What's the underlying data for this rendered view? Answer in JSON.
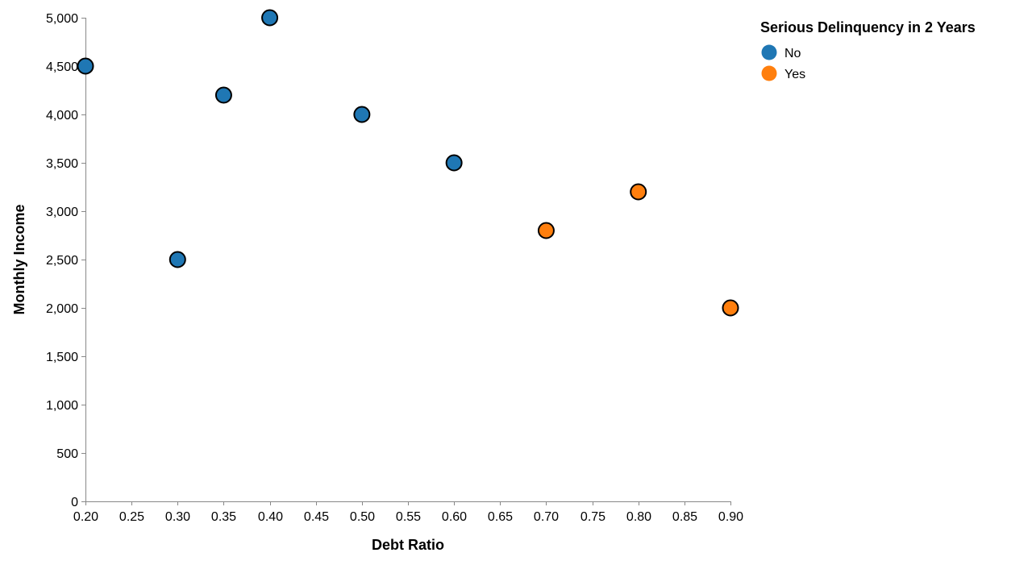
{
  "chart_data": {
    "type": "scatter",
    "xlabel": "Debt Ratio",
    "ylabel": "Monthly Income",
    "xlim": [
      0.2,
      0.9
    ],
    "ylim": [
      0,
      5000
    ],
    "x_ticks": [
      0.2,
      0.25,
      0.3,
      0.35,
      0.4,
      0.45,
      0.5,
      0.55,
      0.6,
      0.65,
      0.7,
      0.75,
      0.8,
      0.85,
      0.9
    ],
    "y_ticks": [
      0,
      500,
      1000,
      1500,
      2000,
      2500,
      3000,
      3500,
      4000,
      4500,
      5000
    ],
    "grid": false,
    "legend": {
      "title": "Serious Delinquency in 2 Years",
      "placement": "top-right",
      "entries": [
        {
          "label": "No",
          "color": "#1f77b4"
        },
        {
          "label": "Yes",
          "color": "#ff7f0e"
        }
      ]
    },
    "series": [
      {
        "name": "No",
        "color": "#1f77b4",
        "points": [
          {
            "x": 0.2,
            "y": 4500
          },
          {
            "x": 0.3,
            "y": 2500
          },
          {
            "x": 0.35,
            "y": 4200
          },
          {
            "x": 0.4,
            "y": 5000
          },
          {
            "x": 0.5,
            "y": 4000
          },
          {
            "x": 0.6,
            "y": 3500
          }
        ]
      },
      {
        "name": "Yes",
        "color": "#ff7f0e",
        "points": [
          {
            "x": 0.7,
            "y": 2800
          },
          {
            "x": 0.8,
            "y": 3200
          },
          {
            "x": 0.9,
            "y": 2000
          }
        ]
      }
    ]
  }
}
